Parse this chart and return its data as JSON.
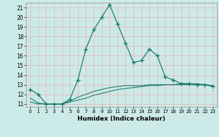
{
  "xlabel": "Humidex (Indice chaleur)",
  "background_color": "#cceae8",
  "grid_color": "#e8b8b8",
  "line_color": "#1a7a6e",
  "xlim": [
    -0.5,
    23.5
  ],
  "ylim": [
    10.7,
    21.5
  ],
  "yticks": [
    11,
    12,
    13,
    14,
    15,
    16,
    17,
    18,
    19,
    20,
    21
  ],
  "xticks": [
    0,
    1,
    2,
    3,
    4,
    5,
    6,
    7,
    8,
    9,
    10,
    11,
    12,
    13,
    14,
    15,
    16,
    17,
    18,
    19,
    20,
    21,
    22,
    23
  ],
  "series1_x": [
    0,
    1,
    2,
    3,
    4,
    5,
    6,
    7,
    8,
    9,
    10,
    11,
    12,
    13,
    14,
    15,
    16,
    17,
    18,
    19,
    20,
    21,
    22,
    23
  ],
  "series1_y": [
    12.5,
    12.0,
    11.0,
    11.0,
    11.0,
    11.5,
    13.5,
    16.7,
    18.7,
    20.0,
    21.3,
    19.3,
    17.3,
    15.3,
    15.5,
    16.7,
    16.0,
    13.8,
    13.5,
    13.1,
    13.1,
    13.0,
    13.0,
    12.8
  ],
  "series2_x": [
    0,
    1,
    2,
    3,
    4,
    5,
    6,
    7,
    8,
    9,
    10,
    11,
    12,
    13,
    14,
    15,
    16,
    17,
    18,
    19,
    20,
    21,
    22,
    23
  ],
  "series2_y": [
    11.2,
    11.0,
    11.0,
    11.0,
    11.0,
    11.2,
    11.4,
    11.6,
    11.9,
    12.1,
    12.3,
    12.5,
    12.6,
    12.7,
    12.8,
    12.9,
    12.9,
    13.0,
    13.0,
    13.1,
    13.1,
    13.1,
    13.0,
    12.9
  ],
  "series3_x": [
    0,
    1,
    2,
    3,
    4,
    5,
    6,
    7,
    8,
    9,
    10,
    11,
    12,
    13,
    14,
    15,
    16,
    17,
    18,
    19,
    20,
    21,
    22,
    23
  ],
  "series3_y": [
    11.6,
    11.1,
    11.0,
    11.0,
    11.0,
    11.3,
    11.7,
    12.0,
    12.3,
    12.5,
    12.7,
    12.8,
    12.9,
    12.9,
    12.9,
    13.0,
    13.0,
    13.0,
    13.0,
    13.0,
    13.0,
    13.0,
    13.0,
    12.9
  ]
}
